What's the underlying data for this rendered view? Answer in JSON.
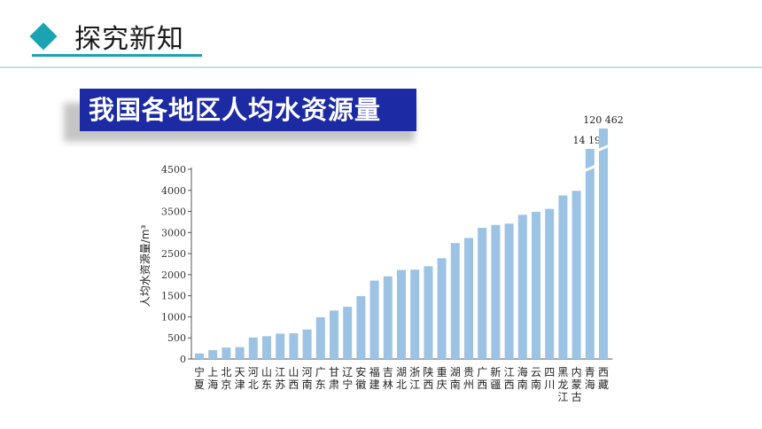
{
  "header": {
    "title": "探究新知"
  },
  "banner": {
    "title": "我国各地区人均水资源量"
  },
  "chart_data": {
    "type": "bar",
    "ylabel": "人均水资源量/m³",
    "ylim": [
      0,
      4500
    ],
    "yticks": [
      0,
      500,
      1000,
      1500,
      2000,
      2500,
      3000,
      3500,
      4000,
      4500
    ],
    "grid": false,
    "categories": [
      "宁夏",
      "上海",
      "北京",
      "天津",
      "河北",
      "山东",
      "江苏",
      "山西",
      "河南",
      "广东",
      "甘肃",
      "辽宁",
      "安徽",
      "福建",
      "吉林",
      "湖北",
      "浙江",
      "陕西",
      "重庆",
      "湖南",
      "贵州",
      "广西",
      "新疆",
      "江西",
      "海南",
      "云南",
      "四川",
      "黑龙江",
      "内蒙古",
      "青海",
      "西藏"
    ],
    "values": [
      130,
      210,
      270,
      280,
      510,
      540,
      600,
      610,
      700,
      990,
      1150,
      1240,
      1490,
      1860,
      1960,
      2110,
      2120,
      2200,
      2390,
      2750,
      2870,
      3110,
      3180,
      3210,
      3420,
      3490,
      3560,
      3880,
      3990,
      14190,
      120462
    ],
    "value_labels": {
      "青海": "14 190",
      "西藏": "120 462"
    },
    "axis_break": true,
    "bar_color": "#9cc3e4"
  }
}
